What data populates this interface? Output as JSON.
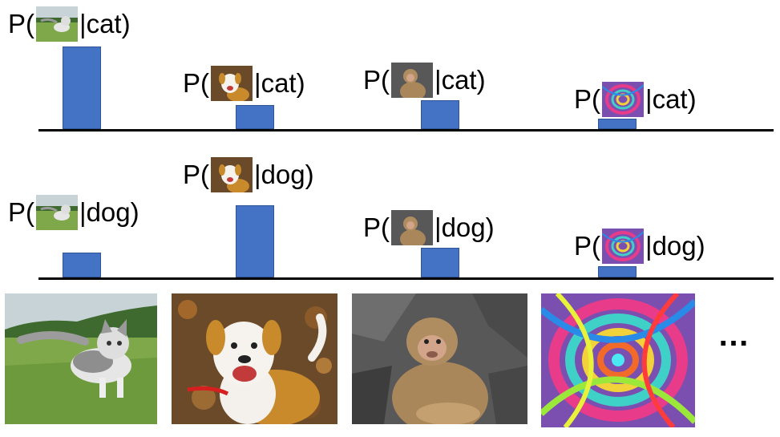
{
  "prob": {
    "prefix": "P(",
    "sep": "|"
  },
  "ellipsis": "…",
  "thumb_icons": [
    "kitten-icon",
    "dog-icon",
    "monkey-icon",
    "swirl-icon"
  ],
  "chart_data": [
    {
      "type": "bar",
      "condition": "cat)",
      "categories": [
        "kitten",
        "dog",
        "monkey",
        "noise"
      ],
      "values": [
        1.0,
        0.29,
        0.35,
        0.13
      ],
      "ylim": [
        0,
        1.0
      ],
      "grid": false
    },
    {
      "type": "bar",
      "condition": "dog)",
      "categories": [
        "kitten",
        "dog",
        "monkey",
        "noise"
      ],
      "values": [
        0.35,
        1.0,
        0.41,
        0.15
      ],
      "ylim": [
        0,
        1.0
      ],
      "grid": false
    }
  ]
}
